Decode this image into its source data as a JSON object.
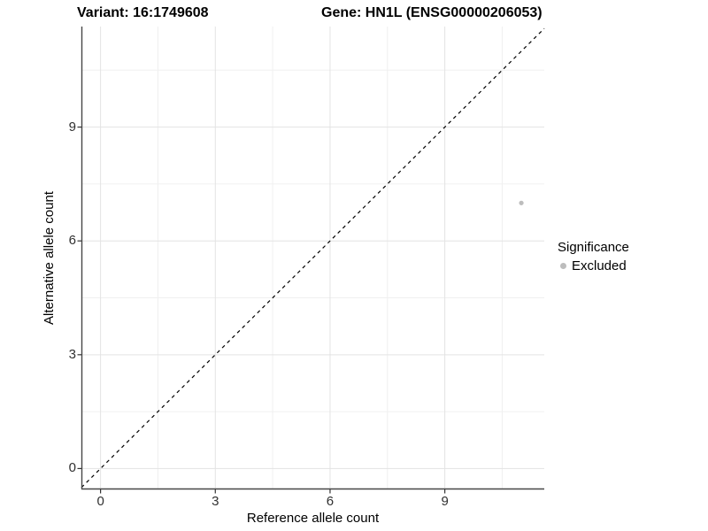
{
  "chart_data": {
    "type": "scatter",
    "title_variant": "Variant: 16:1749608",
    "title_gene": "Gene: HN1L (ENSG00000206053)",
    "xlabel": "Reference allele count",
    "ylabel": "Alternative allele count",
    "xlim": [
      -0.5,
      11.6
    ],
    "ylim": [
      -0.55,
      11.65
    ],
    "x_ticks": [
      0,
      3,
      6,
      9
    ],
    "y_ticks": [
      0,
      3,
      6,
      9
    ],
    "x_minor_ticks": [
      1.5,
      4.5,
      7.5,
      10.5
    ],
    "y_minor_ticks": [
      1.5,
      4.5,
      7.5,
      10.5
    ],
    "grid": true,
    "series": [
      {
        "name": "Excluded",
        "color": "#bdbdbd",
        "point_radius": 2.6,
        "points": [
          {
            "x": 11,
            "y": 7
          }
        ]
      }
    ],
    "identity_line": {
      "equation": "y = x",
      "style": "dashed",
      "color": "#000000"
    },
    "legend": {
      "title": "Significance",
      "position": "right",
      "entries": [
        {
          "label": "Excluded",
          "color": "#bdbdbd"
        }
      ]
    }
  },
  "style": {
    "background": "#ffffff",
    "grid_major": "#e3e3e3",
    "grid_minor": "#f0f0f0",
    "axis_line": "#474747",
    "tick_color": "#333333",
    "text_color": "#000000"
  }
}
